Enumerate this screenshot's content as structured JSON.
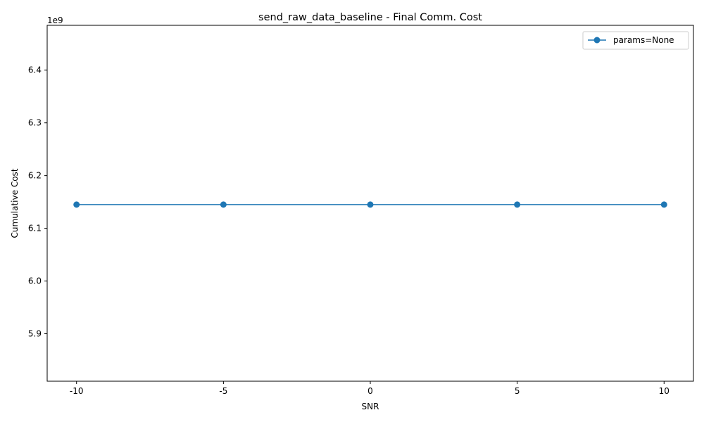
{
  "chart_data": {
    "type": "line",
    "title": "send_raw_data_baseline - Final Comm. Cost",
    "xlabel": "SNR",
    "ylabel": "Cumulative Cost",
    "x": [
      -10,
      -5,
      0,
      5,
      10
    ],
    "x_tick_labels": [
      "-10",
      "-5",
      "0",
      "5",
      "10"
    ],
    "y_ticks": [
      5.9,
      6.0,
      6.1,
      6.2,
      6.3,
      6.4
    ],
    "y_tick_labels": [
      "5.9",
      "6.0",
      "6.1",
      "6.2",
      "6.3",
      "6.4"
    ],
    "y_offset_label": "1e9",
    "ylim": [
      5.81,
      6.485
    ],
    "xlim": [
      -11,
      11
    ],
    "grid": false,
    "legend_position": "top-right",
    "series": [
      {
        "name": "params=None",
        "color": "#1f77b4",
        "marker": "circle",
        "values": [
          6.145,
          6.145,
          6.145,
          6.145,
          6.145
        ]
      }
    ]
  }
}
